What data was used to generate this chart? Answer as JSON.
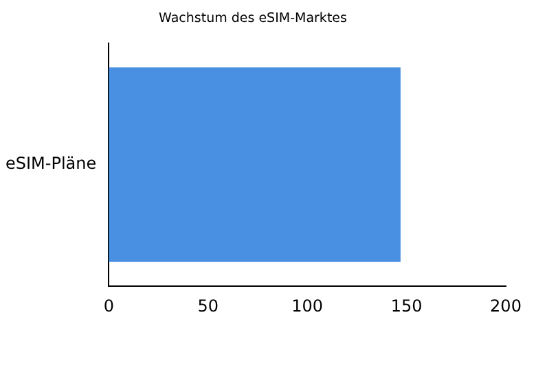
{
  "chart_data": {
    "type": "bar",
    "orientation": "horizontal",
    "title": "Wachstum des eSIM-Marktes",
    "categories": [
      "eSIM-Pläne"
    ],
    "values": [
      147
    ],
    "color": "#4a90e2",
    "xlim": [
      0,
      200
    ],
    "xticks": [
      0,
      50,
      100,
      150,
      200
    ],
    "grid": false,
    "legend": false
  }
}
